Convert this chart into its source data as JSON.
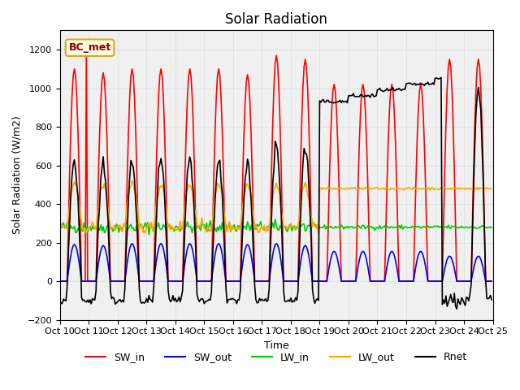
{
  "title": "Solar Radiation",
  "ylabel": "Solar Radiation (W/m2)",
  "xlabel": "Time",
  "ylim": [
    -200,
    1300
  ],
  "yticks": [
    -200,
    0,
    200,
    400,
    600,
    800,
    1000,
    1200
  ],
  "xlim_start": 0,
  "xlim_end": 360,
  "colors": {
    "SW_in": "#FF0000",
    "SW_out": "#0000FF",
    "LW_in": "#00CC00",
    "LW_out": "#FFA500",
    "Rnet": "#000000"
  },
  "legend_label": "BC_met",
  "xtick_labels": [
    "Oct 10",
    "Oct 11",
    "Oct 12",
    "Oct 13",
    "Oct 14",
    "Oct 15",
    "Oct 16",
    "Oct 17",
    "Oct 18",
    "Oct 19",
    "Oct 20",
    "Oct 21",
    "Oct 22",
    "Oct 23",
    "Oct 24",
    "Oct 25"
  ],
  "n_days": 15,
  "day_hours": 24,
  "SW_in_peaks": [
    1100,
    1080,
    1100,
    1100,
    1100,
    1100,
    1070,
    1170,
    1150,
    1020,
    1020,
    1020,
    1020,
    1150,
    1150
  ],
  "SW_out_peaks": [
    190,
    185,
    195,
    195,
    195,
    195,
    190,
    195,
    185,
    155,
    155,
    155,
    155,
    130,
    130
  ],
  "LW_in_flat": 280,
  "LW_out_flat_varying": 350,
  "LW_out_flat_const": 480,
  "Rnet_night": -100,
  "background_color": "#FFFFFF",
  "grid_color": "#DDDDDD"
}
